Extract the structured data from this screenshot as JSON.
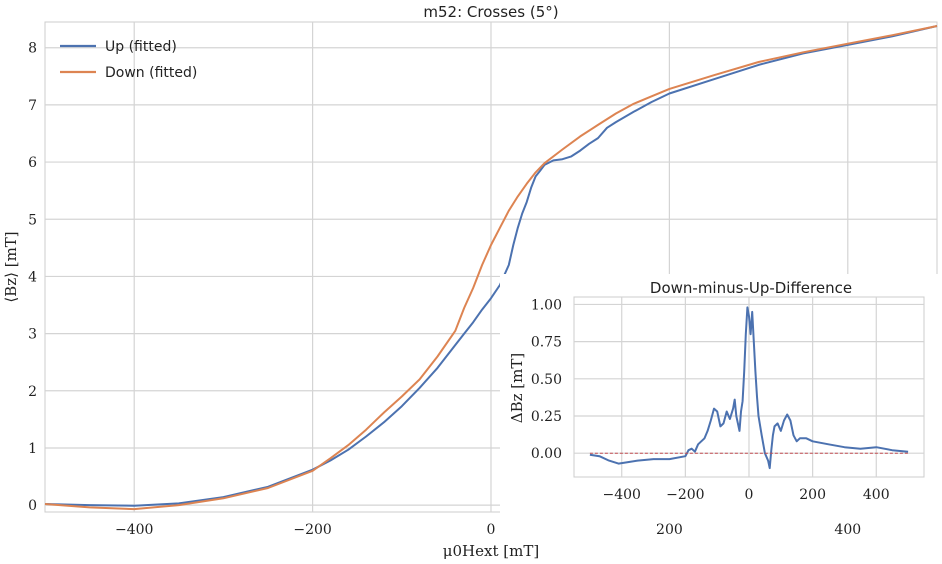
{
  "chart_data": [
    {
      "type": "line",
      "title": "m52: Crosses (5°)",
      "xlabel": "μ0Hext [mT]",
      "ylabel": "⟨Bz⟩ [mT]",
      "xlim": [
        -500,
        500
      ],
      "ylim": [
        -0.12,
        8.45
      ],
      "xticks": [
        -400,
        -200,
        0,
        200,
        400
      ],
      "yticks": [
        0,
        1,
        2,
        3,
        4,
        5,
        6,
        7,
        8
      ],
      "xtick_labels": [
        "−400",
        "−200",
        "0",
        "200",
        "400"
      ],
      "ytick_labels": [
        "0",
        "1",
        "2",
        "3",
        "4",
        "5",
        "6",
        "7",
        "8"
      ],
      "grid": true,
      "legend_position": "top-left",
      "series": [
        {
          "name": "Up (fitted)",
          "color": "#4c72b0",
          "x": [
            -500,
            -450,
            -400,
            -350,
            -300,
            -250,
            -200,
            -180,
            -160,
            -140,
            -120,
            -100,
            -80,
            -60,
            -40,
            -30,
            -20,
            -10,
            0,
            10,
            20,
            25,
            30,
            35,
            40,
            45,
            50,
            55,
            60,
            70,
            80,
            90,
            100,
            110,
            120,
            130,
            140,
            160,
            180,
            200,
            250,
            300,
            350,
            400,
            450,
            500
          ],
          "y": [
            0.02,
            0.0,
            -0.01,
            0.03,
            0.14,
            0.32,
            0.62,
            0.78,
            0.97,
            1.2,
            1.45,
            1.73,
            2.05,
            2.4,
            2.8,
            3.0,
            3.2,
            3.42,
            3.62,
            3.85,
            4.2,
            4.55,
            4.85,
            5.1,
            5.3,
            5.55,
            5.75,
            5.85,
            5.95,
            6.03,
            6.05,
            6.1,
            6.2,
            6.32,
            6.42,
            6.6,
            6.7,
            6.88,
            7.05,
            7.2,
            7.45,
            7.7,
            7.9,
            8.05,
            8.2,
            8.38
          ]
        },
        {
          "name": "Down (fitted)",
          "color": "#dd8452",
          "x": [
            -500,
            -450,
            -400,
            -350,
            -300,
            -250,
            -200,
            -180,
            -160,
            -140,
            -120,
            -100,
            -80,
            -60,
            -40,
            -30,
            -20,
            -10,
            0,
            10,
            20,
            30,
            40,
            50,
            60,
            80,
            100,
            120,
            140,
            160,
            180,
            200,
            250,
            300,
            350,
            400,
            450,
            500
          ],
          "y": [
            0.02,
            -0.04,
            -0.07,
            0.0,
            0.12,
            0.3,
            0.6,
            0.82,
            1.05,
            1.32,
            1.62,
            1.9,
            2.2,
            2.6,
            3.05,
            3.45,
            3.8,
            4.2,
            4.55,
            4.85,
            5.15,
            5.4,
            5.62,
            5.82,
            5.98,
            6.22,
            6.45,
            6.65,
            6.85,
            7.02,
            7.15,
            7.28,
            7.52,
            7.75,
            7.92,
            8.07,
            8.22,
            8.38
          ]
        }
      ]
    },
    {
      "type": "line",
      "title": "Down-minus-Up-Difference",
      "xlabel": "",
      "ylabel": "ΔBz [mT]",
      "xlim": [
        -550,
        550
      ],
      "ylim": [
        -0.16,
        1.05
      ],
      "xticks": [
        -400,
        -200,
        0,
        200,
        400
      ],
      "yticks": [
        0,
        0.25,
        0.5,
        0.75,
        1.0
      ],
      "xtick_labels": [
        "−400",
        "−200",
        "0",
        "200",
        "400"
      ],
      "ytick_labels": [
        "0.00",
        "0.25",
        "0.50",
        "0.75",
        "1.00"
      ],
      "grid": true,
      "series": [
        {
          "color": "#4c72b0",
          "x": [
            -500,
            -470,
            -440,
            -410,
            -380,
            -350,
            -300,
            -250,
            -200,
            -190,
            -180,
            -170,
            -160,
            -150,
            -140,
            -130,
            -120,
            -110,
            -100,
            -90,
            -80,
            -70,
            -60,
            -50,
            -45,
            -40,
            -35,
            -30,
            -25,
            -20,
            -15,
            -10,
            -5,
            0,
            5,
            10,
            15,
            20,
            25,
            30,
            40,
            50,
            60,
            65,
            70,
            75,
            80,
            90,
            100,
            110,
            120,
            130,
            140,
            150,
            160,
            180,
            200,
            250,
            300,
            350,
            400,
            450,
            500
          ],
          "y": [
            -0.01,
            -0.02,
            -0.05,
            -0.07,
            -0.06,
            -0.05,
            -0.04,
            -0.04,
            -0.02,
            0.02,
            0.03,
            0.01,
            0.06,
            0.08,
            0.1,
            0.15,
            0.22,
            0.3,
            0.28,
            0.18,
            0.2,
            0.28,
            0.23,
            0.3,
            0.36,
            0.25,
            0.2,
            0.15,
            0.28,
            0.35,
            0.55,
            0.8,
            0.98,
            0.92,
            0.8,
            0.95,
            0.75,
            0.55,
            0.38,
            0.25,
            0.12,
            0.0,
            -0.05,
            -0.1,
            0.02,
            0.12,
            0.18,
            0.2,
            0.15,
            0.22,
            0.26,
            0.22,
            0.12,
            0.08,
            0.1,
            0.1,
            0.08,
            0.06,
            0.04,
            0.03,
            0.04,
            0.02,
            0.01
          ]
        },
        {
          "color": "#c44e52",
          "x": [
            -500,
            500
          ],
          "y": [
            0,
            0
          ]
        }
      ]
    }
  ]
}
